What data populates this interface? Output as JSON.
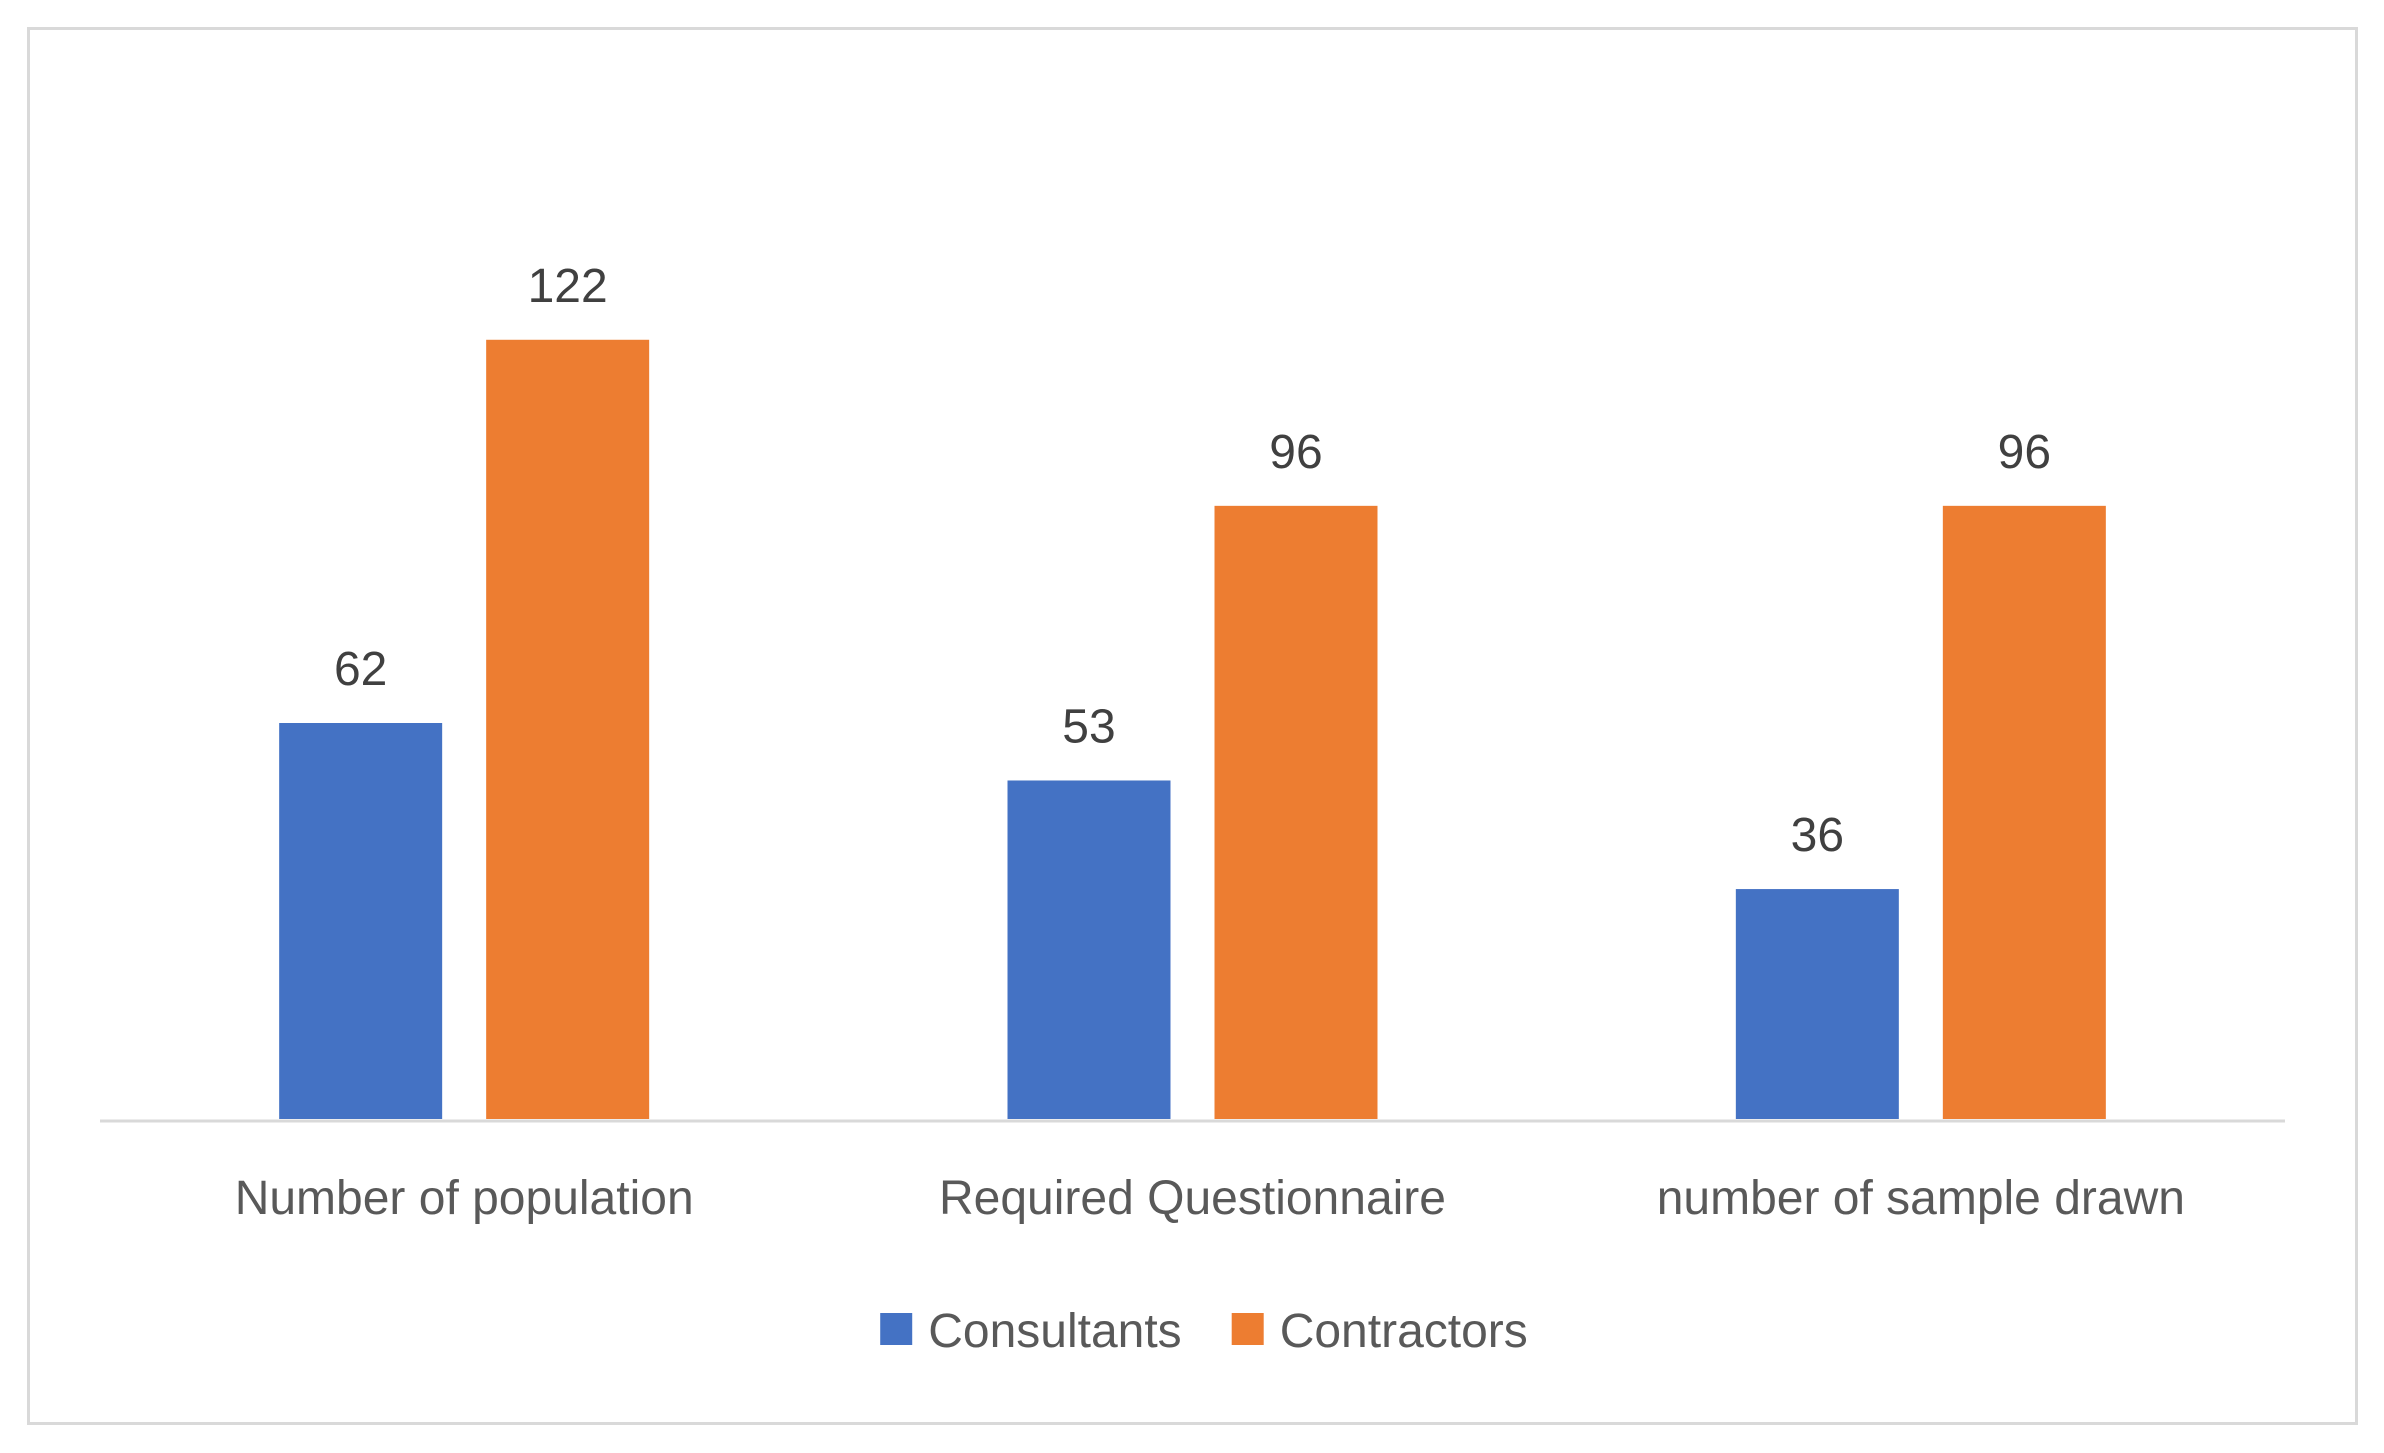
{
  "chart_data": {
    "type": "bar",
    "title": "",
    "xlabel": "",
    "ylabel": "",
    "categories": [
      "Number of population",
      "Required Questionnaire",
      "number of sample drawn"
    ],
    "series": [
      {
        "name": "Consultants",
        "color": "#4472C4",
        "values": [
          62,
          53,
          36
        ]
      },
      {
        "name": "Contractors",
        "color": "#ED7D31",
        "values": [
          122,
          96,
          96
        ]
      }
    ],
    "ylim": [
      0,
      155
    ],
    "grid": false,
    "data_labels": true,
    "legend_position": "bottom"
  }
}
